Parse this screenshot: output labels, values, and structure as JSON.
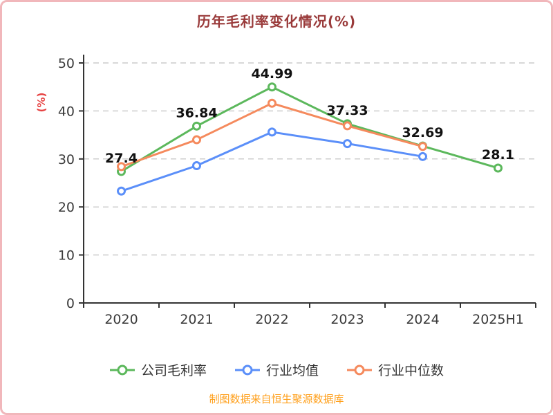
{
  "theme": {
    "title_color": "#9a3b3b",
    "axis_color": "#333333",
    "grid_color": "#cccccc",
    "ylabel_color": "#e64242",
    "source_color": "#ff9f1a",
    "border_color": "#f1b7bb"
  },
  "source_note": "制图数据来自恒生聚源数据库",
  "chart_data": {
    "type": "line",
    "title": "历年毛利率变化情况(%)",
    "ylabel": "(%)",
    "xlabel": "",
    "categories": [
      "2020",
      "2021",
      "2022",
      "2023",
      "2024",
      "2025H1"
    ],
    "series": [
      {
        "name": "公司毛利率",
        "color": "#5cb85c",
        "labeled": true,
        "values": [
          27.4,
          36.84,
          44.99,
          37.33,
          32.69,
          28.1
        ]
      },
      {
        "name": "行业均值",
        "color": "#5b8ff9",
        "labeled": false,
        "values": [
          23.3,
          28.6,
          35.6,
          33.2,
          30.5,
          null
        ]
      },
      {
        "name": "行业中位数",
        "color": "#f58a5d",
        "labeled": false,
        "values": [
          28.4,
          34.0,
          41.6,
          36.9,
          32.6,
          null
        ]
      }
    ],
    "ylim": [
      0,
      50
    ],
    "yticks": [
      0,
      10,
      20,
      30,
      40,
      50
    ],
    "grid": "dashed-horizontal",
    "legend_position": "bottom"
  }
}
